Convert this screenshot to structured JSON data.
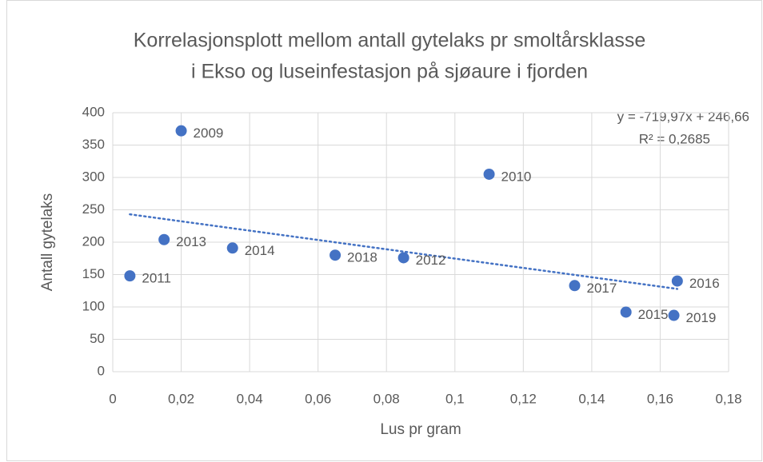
{
  "chart_data": {
    "type": "scatter",
    "title": [
      "Korrelasjonsplott mellom antall gytelaks pr smoltårsklasse",
      "i Ekso og luseinfestasjon på sjøaure i fjorden"
    ],
    "x_label": "Lus pr gram",
    "y_label": "Antall gytelaks",
    "x": [
      0.02,
      0.11,
      0.015,
      0.035,
      0.065,
      0.085,
      0.005,
      0.135,
      0.165,
      0.15,
      0.164
    ],
    "values": [
      372,
      305,
      204,
      191,
      180,
      176,
      148,
      133,
      140,
      92,
      87
    ],
    "point_labels": [
      "2009",
      "2010",
      "2013",
      "2014",
      "2018",
      "2012",
      "2011",
      "2017",
      "2016",
      "2015",
      "2019"
    ],
    "color": "#4472c4",
    "trendline": {
      "slope": -719.97,
      "intercept": 246.66,
      "equation": "y = -719,97x + 246,66",
      "r2": "R² = 0,2685"
    },
    "xlim": [
      0,
      0.18
    ],
    "xticks": [
      0,
      {
        "value": 0.02,
        "label": "0,02"
      },
      {
        "value": 0.04,
        "label": "0,04"
      },
      {
        "value": 0.06,
        "label": "0,06"
      },
      {
        "value": 0.08,
        "label": "0,08"
      },
      {
        "value": 0.1,
        "label": "0,1"
      },
      {
        "value": 0.12,
        "label": "0,12"
      },
      {
        "value": 0.14,
        "label": "0,14"
      },
      {
        "value": 0.16,
        "label": "0,16"
      },
      {
        "value": 0.18,
        "label": "0,18"
      }
    ],
    "ylim": [
      0,
      400
    ],
    "yticks": [
      0,
      50,
      100,
      150,
      200,
      250,
      300,
      350,
      400
    ],
    "grid": true
  }
}
